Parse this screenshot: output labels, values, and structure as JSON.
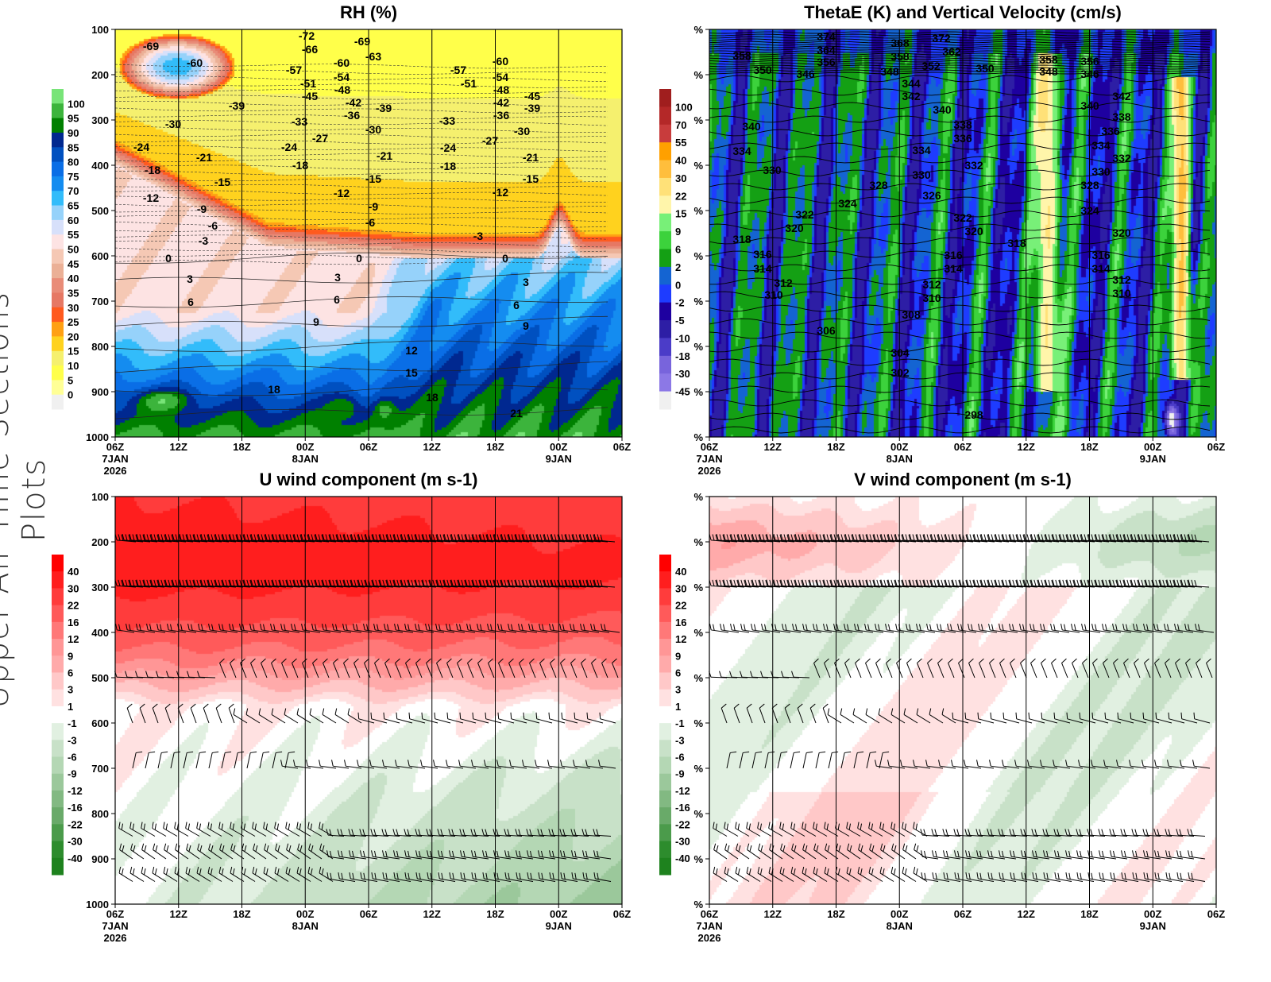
{
  "page": {
    "side_title": "Upper-Air Time Sections Plots"
  },
  "chart_data": [
    {
      "type": "heatmap",
      "title": "RH (%)",
      "ylim": [
        1000,
        100
      ],
      "yticks": [
        "100",
        "200",
        "300",
        "400",
        "500",
        "600",
        "700",
        "800",
        "900",
        "1000"
      ],
      "xticks": [
        "06Z",
        "12Z",
        "18Z",
        "00Z",
        "06Z",
        "12Z",
        "18Z",
        "00Z",
        "06Z"
      ],
      "date_labels": {
        "0": "7JAN",
        "3": "8JAN",
        "7": "9JAN"
      },
      "year": "2026",
      "colorbar": {
        "levels": [
          0,
          5,
          10,
          15,
          20,
          25,
          30,
          35,
          40,
          45,
          50,
          55,
          60,
          65,
          70,
          75,
          80,
          85,
          90,
          95,
          100
        ],
        "colors": [
          "#f0f0f0",
          "#ffff96",
          "#ffff4a",
          "#f5f06e",
          "#ffd21e",
          "#ffa014",
          "#ff5a1e",
          "#e67864",
          "#e98c78",
          "#ebb096",
          "#f5c8b4",
          "#fde3e3",
          "#d7e0fa",
          "#96d2fa",
          "#32bcfa",
          "#148cf0",
          "#0a6ee6",
          "#0050c0",
          "#002890",
          "#008000",
          "#3cb43c",
          "#78e478"
        ]
      },
      "contour_labels": [
        "-69",
        "-60",
        "-72",
        "-66",
        "-69",
        "-63",
        "-57",
        "-60",
        "-51",
        "-54",
        "-48",
        "-45",
        "-42",
        "-39",
        "-39",
        "-36",
        "-30",
        "-33",
        "-30",
        "-27",
        "-24",
        "-24",
        "-21",
        "-21",
        "-18",
        "-18",
        "-15",
        "-15",
        "-12",
        "-12",
        "-9",
        "-9",
        "-6",
        "-6",
        "-3",
        "0",
        "0",
        "3",
        "3",
        "6",
        "6",
        "9",
        "12",
        "15",
        "18",
        "18",
        "21",
        "-57",
        "-51",
        "-60",
        "-54",
        "-48",
        "-45",
        "-42",
        "-39",
        "-36",
        "-33",
        "-30",
        "-27",
        "-24",
        "-21",
        "-18",
        "-15",
        "-12",
        "-3",
        "0",
        "3",
        "6",
        "9"
      ]
    },
    {
      "type": "heatmap",
      "title": "ThetaE (K) and Vertical Velocity (cm/s)",
      "yticks": [
        "%",
        "%",
        "%",
        "%",
        "%",
        "%",
        "%",
        "%",
        "%",
        "%"
      ],
      "xticks": [
        "06Z",
        "12Z",
        "18Z",
        "00Z",
        "06Z",
        "12Z",
        "18Z",
        "00Z",
        "06Z"
      ],
      "date_labels": {
        "0": "7JAN",
        "3": "8JAN",
        "7": "9JAN"
      },
      "year": "2026",
      "colorbar": {
        "levels": [
          -45,
          -30,
          -18,
          -10,
          -5,
          -2,
          0,
          2,
          6,
          9,
          15,
          22,
          30,
          40,
          55,
          70,
          100
        ],
        "colors": [
          "#f0f0f0",
          "#8c78e6",
          "#7864dc",
          "#4b3cc8",
          "#2d1ea5",
          "#1e00a0",
          "#1e3cff",
          "#1464d2",
          "#14a014",
          "#3cd23c",
          "#78f078",
          "#fff5aa",
          "#ffe178",
          "#ffbe3c",
          "#ffa000",
          "#c83c3c",
          "#b42828",
          "#a01e1e"
        ]
      },
      "contour_labels": [
        "374",
        "372",
        "368",
        "364",
        "362",
        "358",
        "358",
        "356",
        "352",
        "350",
        "350",
        "348",
        "346",
        "358",
        "356",
        "348",
        "346",
        "344",
        "342",
        "342",
        "340",
        "340",
        "340",
        "338",
        "338",
        "336",
        "336",
        "334",
        "334",
        "334",
        "332",
        "332",
        "330",
        "330",
        "330",
        "328",
        "328",
        "326",
        "324",
        "324",
        "322",
        "322",
        "320",
        "320",
        "320",
        "318",
        "318",
        "316",
        "316",
        "316",
        "314",
        "314",
        "314",
        "312",
        "312",
        "312",
        "310",
        "310",
        "310",
        "308",
        "306",
        "304",
        "302",
        "298"
      ]
    },
    {
      "type": "heatmap",
      "title": "U wind component (m s-1)",
      "ylim": [
        1000,
        100
      ],
      "yticks": [
        "100",
        "200",
        "300",
        "400",
        "500",
        "600",
        "700",
        "800",
        "900",
        "1000"
      ],
      "xticks": [
        "06Z",
        "12Z",
        "18Z",
        "00Z",
        "06Z",
        "12Z",
        "18Z",
        "00Z",
        "06Z"
      ],
      "date_labels": {
        "0": "7JAN",
        "3": "8JAN",
        "7": "9JAN"
      },
      "year": "2026",
      "colorbar": {
        "levels": [
          -40,
          -30,
          -22,
          -16,
          -12,
          -9,
          -6,
          -3,
          -1,
          1,
          3,
          6,
          9,
          12,
          16,
          22,
          30,
          40
        ],
        "colors": [
          "#1e821e",
          "#2d8c2d",
          "#4b9b4b",
          "#69aa69",
          "#82b982",
          "#9bc89b",
          "#b4d7b4",
          "#c8e1c8",
          "#e1f0e1",
          "#ffffff",
          "#ffe1e1",
          "#ffc8c8",
          "#ffaaaa",
          "#ff9696",
          "#ff7878",
          "#ff5a5a",
          "#ff3c3c",
          "#ff1e1e",
          "#ff0000"
        ]
      },
      "wind_barb_levels": [
        200,
        300,
        400,
        500,
        600,
        700,
        850,
        900,
        950
      ]
    },
    {
      "type": "heatmap",
      "title": "V wind component (m s-1)",
      "yticks": [
        "%",
        "%",
        "%",
        "%",
        "%",
        "%",
        "%",
        "%",
        "%",
        "%"
      ],
      "xticks": [
        "06Z",
        "12Z",
        "18Z",
        "00Z",
        "06Z",
        "12Z",
        "18Z",
        "00Z",
        "06Z"
      ],
      "date_labels": {
        "0": "7JAN",
        "3": "8JAN",
        "7": "9JAN"
      },
      "year": "2026",
      "colorbar": {
        "levels": [
          -40,
          -30,
          -22,
          -16,
          -12,
          -9,
          -6,
          -3,
          -1,
          1,
          3,
          6,
          9,
          12,
          16,
          22,
          30,
          40
        ],
        "colors": [
          "#1e821e",
          "#2d8c2d",
          "#4b9b4b",
          "#69aa69",
          "#82b982",
          "#9bc89b",
          "#b4d7b4",
          "#c8e1c8",
          "#e1f0e1",
          "#ffffff",
          "#ffe1e1",
          "#ffc8c8",
          "#ffaaaa",
          "#ff9696",
          "#ff7878",
          "#ff5a5a",
          "#ff3c3c",
          "#ff1e1e",
          "#ff0000"
        ]
      },
      "wind_barb_levels": [
        200,
        300,
        400,
        500,
        600,
        700,
        850,
        900,
        950
      ]
    }
  ]
}
